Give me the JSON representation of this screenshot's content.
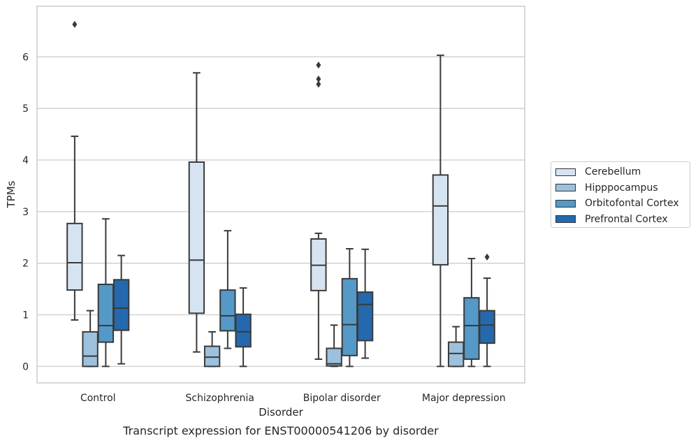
{
  "chart_data": {
    "type": "box",
    "title": "",
    "caption": "Transcript expression for ENST00000541206 by disorder",
    "xlabel": "Disorder",
    "ylabel": "TPMs",
    "ylim": [
      -0.32,
      6.98
    ],
    "yticks": [
      "0",
      "1",
      "2",
      "3",
      "4",
      "5",
      "6"
    ],
    "grid": "horizontal",
    "legend_position": "right",
    "categories": [
      "Control",
      "Schizophrenia",
      "Bipolar disorder",
      "Major depression"
    ],
    "series": [
      {
        "name": "Cerebellum",
        "color": "#d6e4f2",
        "boxes": [
          {
            "min": 0.9,
            "q1": 1.48,
            "median": 2.01,
            "q3": 2.77,
            "max": 4.46,
            "outliers": [
              6.63
            ]
          },
          {
            "min": 0.28,
            "q1": 1.03,
            "median": 2.06,
            "q3": 3.96,
            "max": 5.69,
            "outliers": []
          },
          {
            "min": 0.14,
            "q1": 1.47,
            "median": 1.96,
            "q3": 2.47,
            "max": 2.58,
            "outliers": [
              5.47,
              5.57,
              5.84
            ]
          },
          {
            "min": 0.0,
            "q1": 1.97,
            "median": 3.11,
            "q3": 3.71,
            "max": 6.03,
            "outliers": []
          }
        ]
      },
      {
        "name": "Hipppocampus",
        "color": "#9dc1dd",
        "boxes": [
          {
            "min": 0.0,
            "q1": 0.0,
            "median": 0.2,
            "q3": 0.67,
            "max": 1.08,
            "outliers": []
          },
          {
            "min": 0.0,
            "q1": 0.0,
            "median": 0.18,
            "q3": 0.39,
            "max": 0.67,
            "outliers": []
          },
          {
            "min": 0.0,
            "q1": 0.01,
            "median": 0.05,
            "q3": 0.35,
            "max": 0.8,
            "outliers": []
          },
          {
            "min": 0.0,
            "q1": 0.0,
            "median": 0.25,
            "q3": 0.47,
            "max": 0.77,
            "outliers": []
          }
        ]
      },
      {
        "name": "Orbitofontal Cortex",
        "color": "#5499c7",
        "boxes": [
          {
            "min": 0.0,
            "q1": 0.47,
            "median": 0.79,
            "q3": 1.59,
            "max": 2.86,
            "outliers": []
          },
          {
            "min": 0.35,
            "q1": 0.69,
            "median": 0.98,
            "q3": 1.48,
            "max": 2.63,
            "outliers": []
          },
          {
            "min": 0.0,
            "q1": 0.21,
            "median": 0.81,
            "q3": 1.7,
            "max": 2.28,
            "outliers": []
          },
          {
            "min": 0.0,
            "q1": 0.14,
            "median": 0.79,
            "q3": 1.33,
            "max": 2.09,
            "outliers": []
          }
        ]
      },
      {
        "name": "Prefrontal Cortex",
        "color": "#2469ad",
        "boxes": [
          {
            "min": 0.05,
            "q1": 0.7,
            "median": 1.13,
            "q3": 1.68,
            "max": 2.15,
            "outliers": []
          },
          {
            "min": 0.0,
            "q1": 0.38,
            "median": 0.67,
            "q3": 1.01,
            "max": 1.52,
            "outliers": []
          },
          {
            "min": 0.16,
            "q1": 0.5,
            "median": 1.2,
            "q3": 1.44,
            "max": 2.27,
            "outliers": []
          },
          {
            "min": 0.0,
            "q1": 0.45,
            "median": 0.8,
            "q3": 1.08,
            "max": 1.71,
            "outliers": [
              2.12
            ]
          }
        ]
      }
    ]
  }
}
